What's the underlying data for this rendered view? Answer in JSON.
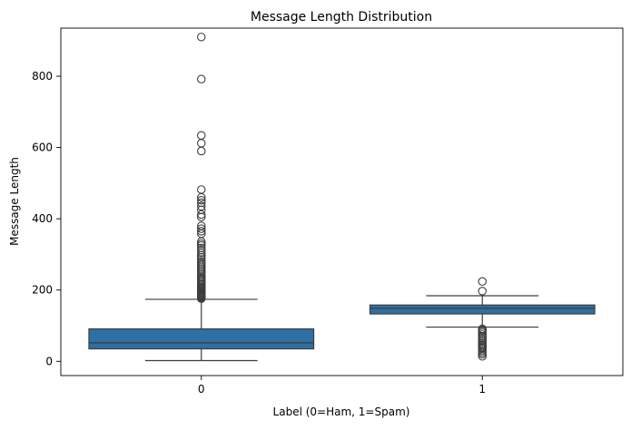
{
  "chart_data": {
    "type": "box",
    "title": "Message Length Distribution",
    "xlabel": "Label (0=Ham, 1=Spam)",
    "ylabel": "Message Length",
    "categories": [
      "0",
      "1"
    ],
    "ylim": [
      -40,
      935
    ],
    "yticks": [
      0,
      200,
      400,
      600,
      800
    ],
    "grid": false,
    "box_color": "#2f6fa4",
    "edge_color": "#3d3d3d",
    "boxes": [
      {
        "category": "0",
        "whisker_low": 2,
        "q1": 35,
        "median": 52,
        "q3": 91,
        "whisker_high": 174,
        "outliers": [
          176,
          178,
          180,
          182,
          184,
          186,
          188,
          190,
          193,
          196,
          199,
          202,
          205,
          208,
          212,
          216,
          220,
          224,
          228,
          232,
          236,
          240,
          245,
          250,
          255,
          260,
          265,
          270,
          275,
          280,
          286,
          292,
          298,
          305,
          312,
          318,
          325,
          330,
          336,
          358,
          365,
          372,
          380,
          405,
          412,
          425,
          435,
          445,
          452,
          460,
          482,
          590,
          612,
          634,
          792,
          910
        ]
      },
      {
        "category": "1",
        "whisker_low": 96,
        "q1": 133,
        "median": 149,
        "q3": 158,
        "whisker_high": 184,
        "outliers": [
          14,
          20,
          25,
          30,
          35,
          38,
          42,
          46,
          50,
          55,
          60,
          65,
          70,
          75,
          80,
          84,
          88,
          91,
          197,
          224
        ]
      }
    ]
  }
}
